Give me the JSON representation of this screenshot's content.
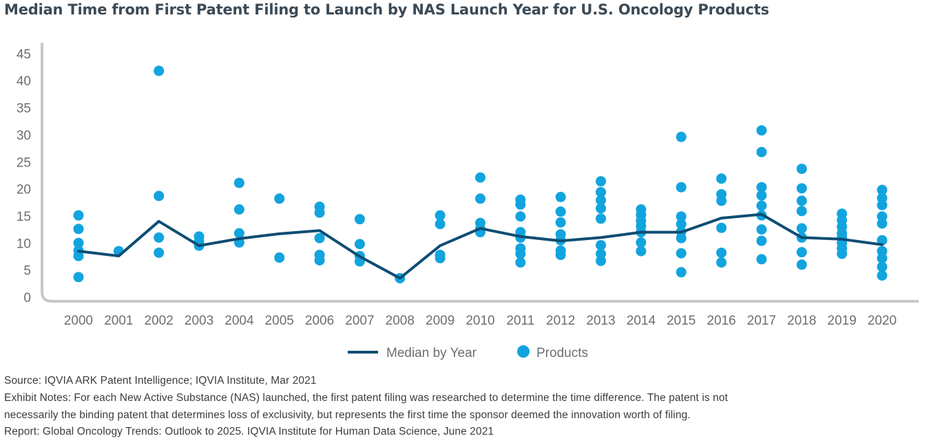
{
  "title": "Median Time from First Patent Filing to Launch by NAS Launch Year for U.S. Oncology Products",
  "colors": {
    "median": "#0e4d73",
    "products": "#12a4de",
    "axis": "#c8c8c8",
    "text": "#6b6f73"
  },
  "chart_data": {
    "type": "scatter",
    "title": "Median Time from First Patent Filing to Launch by NAS Launch Year for U.S. Oncology Products",
    "xlabel": "",
    "ylabel": "",
    "ylim": [
      0,
      45
    ],
    "yticks": [
      "0",
      "5",
      "10",
      "15",
      "20",
      "25",
      "30",
      "35",
      "40",
      "45"
    ],
    "grid": false,
    "legend_position": "bottom",
    "categories": [
      "2000",
      "2001",
      "2002",
      "2003",
      "2004",
      "2005",
      "2006",
      "2007",
      "2008",
      "2009",
      "2010",
      "2011",
      "2012",
      "2013",
      "2014",
      "2015",
      "2016",
      "2017",
      "2018",
      "2019",
      "2020"
    ],
    "series": [
      {
        "name": "Median by Year",
        "type": "line",
        "values": [
          8.5,
          7.6,
          14.0,
          9.5,
          10.8,
          11.7,
          12.3,
          7.5,
          3.5,
          9.5,
          12.7,
          11.2,
          10.4,
          11.0,
          12.0,
          12.0,
          14.6,
          15.3,
          11.0,
          10.7,
          9.7
        ]
      },
      {
        "name": "Products",
        "type": "scatter",
        "points": [
          [
            15.1,
            12.6,
            10.0,
            8.6,
            7.6,
            3.7
          ],
          [
            8.5
          ],
          [
            41.8,
            18.7,
            11.0,
            8.2
          ],
          [
            11.2,
            10.3,
            9.5
          ],
          [
            21.1,
            16.2,
            11.8,
            10.1
          ],
          [
            18.2,
            7.3
          ],
          [
            16.7,
            15.6,
            10.9,
            7.8,
            6.8
          ],
          [
            14.4,
            9.8,
            7.6,
            6.6
          ],
          [
            3.5
          ],
          [
            15.1,
            13.5,
            7.8,
            7.2
          ],
          [
            22.1,
            18.2,
            13.7,
            12.6,
            12.0
          ],
          [
            18.0,
            17.1,
            14.9,
            12.0,
            11.0,
            9.0,
            8.0,
            6.4
          ],
          [
            18.5,
            15.8,
            13.8,
            11.6,
            10.5,
            8.6,
            7.8
          ],
          [
            21.4,
            19.4,
            17.9,
            16.4,
            14.5,
            9.6,
            8.0,
            6.7
          ],
          [
            16.2,
            15.2,
            14.1,
            13.1,
            12.0,
            10.1,
            8.5
          ],
          [
            29.6,
            20.3,
            14.9,
            13.5,
            12.1,
            10.9,
            8.1,
            4.6
          ],
          [
            21.9,
            19.0,
            17.8,
            12.8,
            8.2,
            6.4
          ],
          [
            30.8,
            26.8,
            20.3,
            18.8,
            16.9,
            15.1,
            12.5,
            10.4,
            7.0
          ],
          [
            23.7,
            20.1,
            17.8,
            15.9,
            12.7,
            11.0,
            8.3,
            6.0
          ],
          [
            15.4,
            14.2,
            13.0,
            11.8,
            11.0,
            10.0,
            9.0,
            8.0
          ],
          [
            19.8,
            18.3,
            17.0,
            14.9,
            13.6,
            10.5,
            8.5,
            7.2,
            5.6,
            4.0
          ]
        ]
      }
    ]
  },
  "legend": {
    "median_label": "Median by Year",
    "products_label": "Products"
  },
  "footnotes": {
    "source": "Source: IQVIA ARK Patent Intelligence; IQVIA Institute, Mar 2021",
    "notes_line1": "Exhibit Notes: For each New Active Substance (NAS) launched, the first patent filing was researched to determine the time difference. The patent is not",
    "notes_line2": "necessarily the binding patent that determines loss of exclusivity, but represents the first time the sponsor deemed the innovation worth of filing.",
    "report": "Report: Global Oncology Trends: Outlook to 2025. IQVIA Institute for Human Data Science, June 2021"
  }
}
